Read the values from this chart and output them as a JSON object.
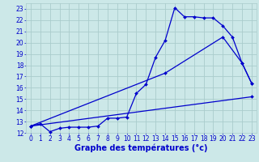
{
  "bg_color": "#cce8e8",
  "grid_color": "#aacccc",
  "line_color": "#0000cc",
  "xlabel": "Graphe des températures (°c)",
  "xlabel_fontsize": 7,
  "tick_fontsize": 5.5,
  "xlim": [
    -0.5,
    23.5
  ],
  "ylim": [
    12,
    23.5
  ],
  "yticks": [
    12,
    13,
    14,
    15,
    16,
    17,
    18,
    19,
    20,
    21,
    22,
    23
  ],
  "xticks": [
    0,
    1,
    2,
    3,
    4,
    5,
    6,
    7,
    8,
    9,
    10,
    11,
    12,
    13,
    14,
    15,
    16,
    17,
    18,
    19,
    20,
    21,
    22,
    23
  ],
  "line1_x": [
    0,
    1,
    2,
    3,
    4,
    5,
    6,
    7,
    8,
    9,
    10,
    11,
    12,
    13,
    14,
    15,
    16,
    17,
    18,
    19,
    20,
    21,
    22,
    23
  ],
  "line1_y": [
    12.6,
    12.8,
    12.1,
    12.4,
    12.5,
    12.5,
    12.5,
    12.6,
    13.3,
    13.3,
    13.4,
    15.5,
    16.3,
    18.7,
    20.2,
    23.1,
    22.3,
    22.3,
    22.2,
    22.2,
    21.5,
    20.5,
    18.2,
    16.4
  ],
  "line2_x": [
    0,
    14,
    20,
    22,
    23
  ],
  "line2_y": [
    12.6,
    17.3,
    20.5,
    18.2,
    16.4
  ],
  "line3_x": [
    0,
    23
  ],
  "line3_y": [
    12.6,
    15.2
  ]
}
